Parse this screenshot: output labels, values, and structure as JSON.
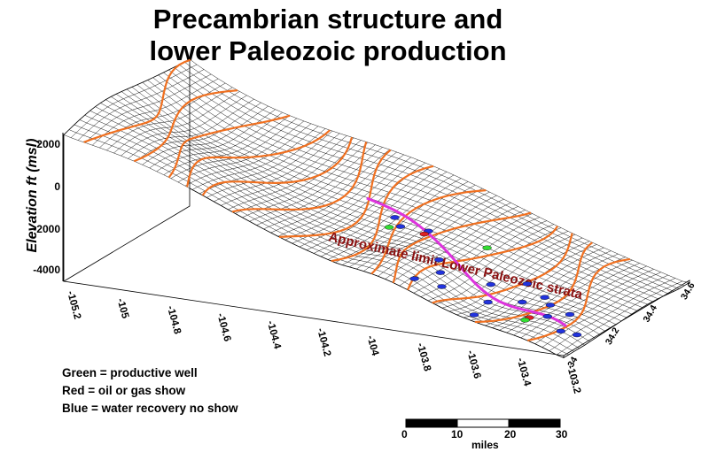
{
  "chart_data": {
    "type": "surface3d",
    "title_line1": "Precambrian structure and",
    "title_line2": "lower Paleozoic production",
    "zlabel": "Elevation ft (msl)",
    "z_ticks": [
      "2000",
      "0",
      "-2000",
      "-4000"
    ],
    "x_ticks": [
      "-105.2",
      "-105",
      "-104.8",
      "-104.6",
      "-104.4",
      "-104.2",
      "-104",
      "-103.8",
      "-103.6",
      "-103.4",
      "-103.2"
    ],
    "y_ticks": [
      "34",
      "34.2",
      "34.4",
      "34.6"
    ],
    "annotation": "Approximate limit Lower Paleozoic strata",
    "colors": {
      "mesh": "#000000",
      "contour": "#f07020",
      "limit_line": "#dd33dd",
      "annotation": "#8b1010",
      "productive": "#33dd33",
      "show": "#dd2222",
      "water": "#2233dd"
    },
    "wells": {
      "productive": [
        {
          "lon": -103.83,
          "lat": 34.35
        },
        {
          "lon": -103.45,
          "lat": 34.1
        },
        {
          "lon": -104.18,
          "lat": 34.28
        }
      ],
      "show": [
        {
          "lon": -104.05,
          "lat": 34.3
        },
        {
          "lon": -103.45,
          "lat": 34.12
        }
      ],
      "water": [
        {
          "lon": -104.2,
          "lat": 34.33
        },
        {
          "lon": -104.15,
          "lat": 34.3
        },
        {
          "lon": -104.05,
          "lat": 34.32
        },
        {
          "lon": -103.9,
          "lat": 34.2
        },
        {
          "lon": -103.85,
          "lat": 34.15
        },
        {
          "lon": -103.8,
          "lat": 34.1
        },
        {
          "lon": -103.7,
          "lat": 34.22
        },
        {
          "lon": -103.65,
          "lat": 34.15
        },
        {
          "lon": -103.6,
          "lat": 34.28
        },
        {
          "lon": -103.55,
          "lat": 34.2
        },
        {
          "lon": -103.5,
          "lat": 34.25
        },
        {
          "lon": -103.45,
          "lat": 34.22
        },
        {
          "lon": -103.4,
          "lat": 34.15
        },
        {
          "lon": -103.35,
          "lat": 34.2
        },
        {
          "lon": -103.3,
          "lat": 34.1
        },
        {
          "lon": -103.25,
          "lat": 34.12
        },
        {
          "lon": -103.62,
          "lat": 34.05
        },
        {
          "lon": -103.88,
          "lat": 34.06
        }
      ]
    }
  },
  "legend": {
    "green": "Green = productive well",
    "red": "Red = oil or gas show",
    "blue": "Blue = water recovery no show"
  },
  "scale": {
    "ticks": [
      "0",
      "10",
      "20",
      "30"
    ],
    "unit": "miles"
  }
}
